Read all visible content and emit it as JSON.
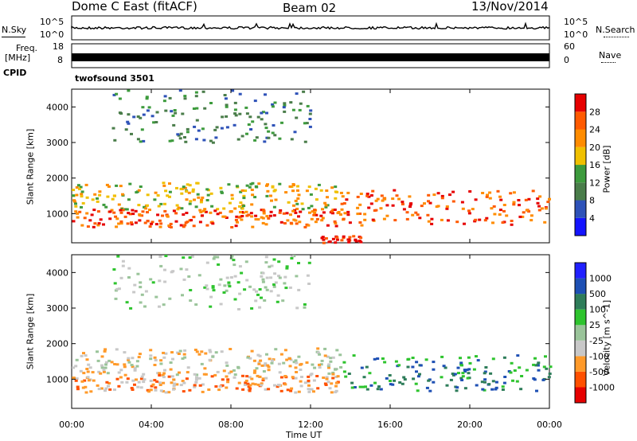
{
  "header": {
    "station": "Dome C East (fitACF)",
    "beam": "Beam 02",
    "date": "13/Nov/2014"
  },
  "top_panels": {
    "nsky_label": "N.Sky",
    "nsearch_label": "N.Search",
    "noise_ticks_left": [
      "10^5",
      "10^0"
    ],
    "noise_ticks_right": [
      "10^5",
      "10^0"
    ],
    "freq_label_1": "Freq.",
    "freq_label_2": "[MHz]",
    "freq_ticks": [
      "18",
      "8"
    ],
    "nave_label": "Nave",
    "nave_ticks": [
      "60",
      "0"
    ],
    "cpid_label": "CPID",
    "cpid_value": "twofsound 3501"
  },
  "colors": {
    "power": [
      "#1414ff",
      "#2e52b8",
      "#4a7d4a",
      "#3d9b3d",
      "#f0c000",
      "#ff8c00",
      "#ff5a00",
      "#e60000"
    ],
    "velocity": [
      "#e60000",
      "#ff5000",
      "#ff9a2a",
      "#c8c8c8",
      "#9ac49a",
      "#2ec42e",
      "#2e7d5a",
      "#1e50b4",
      "#2020ff"
    ]
  },
  "chart_data": [
    {
      "type": "heatmap",
      "title": "Power",
      "ylabel": "Slant Range [km]",
      "colorbar_label": "Power [dB]",
      "colorbar_ticks": [
        "28",
        "24",
        "20",
        "16",
        "12",
        "8",
        "4"
      ],
      "x_ticks": [
        "00:00",
        "04:00",
        "08:00",
        "12:00",
        "16:00",
        "20:00",
        "00:00"
      ],
      "y_ticks": [
        "4000",
        "3000",
        "2000",
        "1000"
      ],
      "xlim_hours": [
        0,
        24
      ],
      "ylim_km": [
        180,
        4500
      ],
      "bands": [
        {
          "t0": 0,
          "t1": 13.5,
          "r0": 1150,
          "r1": 1900,
          "level": 4
        },
        {
          "t0": 0,
          "t1": 13.5,
          "r0": 650,
          "r1": 1150,
          "level": 6
        },
        {
          "t0": 13.5,
          "t1": 24,
          "r0": 700,
          "r1": 1700,
          "level": 6
        },
        {
          "t0": 2,
          "t1": 12,
          "r0": 3000,
          "r1": 4500,
          "level": 2
        },
        {
          "t0": 12.5,
          "t1": 14.5,
          "r0": 200,
          "r1": 400,
          "level": 7
        }
      ]
    },
    {
      "type": "heatmap",
      "title": "Velocity",
      "ylabel": "Slant Range [km]",
      "xlabel": "Time UT",
      "colorbar_label": "Velocity [m s^-1]",
      "colorbar_ticks": [
        "1000",
        "500",
        "100",
        "25",
        "-25",
        "-100",
        "-500",
        "-1000"
      ],
      "x_ticks": [
        "00:00",
        "04:00",
        "08:00",
        "12:00",
        "16:00",
        "20:00",
        "00:00"
      ],
      "y_ticks": [
        "4000",
        "3000",
        "2000",
        "1000"
      ],
      "xlim_hours": [
        0,
        24
      ],
      "ylim_km": [
        180,
        4500
      ],
      "bands": [
        {
          "t0": 0,
          "t1": 13.5,
          "r0": 1150,
          "r1": 1900,
          "level": 3
        },
        {
          "t0": 0,
          "t1": 13.5,
          "r0": 650,
          "r1": 1150,
          "level": 2
        },
        {
          "t0": 13.5,
          "t1": 24,
          "r0": 700,
          "r1": 1700,
          "level": 6
        },
        {
          "t0": 2,
          "t1": 12,
          "r0": 3000,
          "r1": 4500,
          "level": 4
        }
      ]
    }
  ]
}
